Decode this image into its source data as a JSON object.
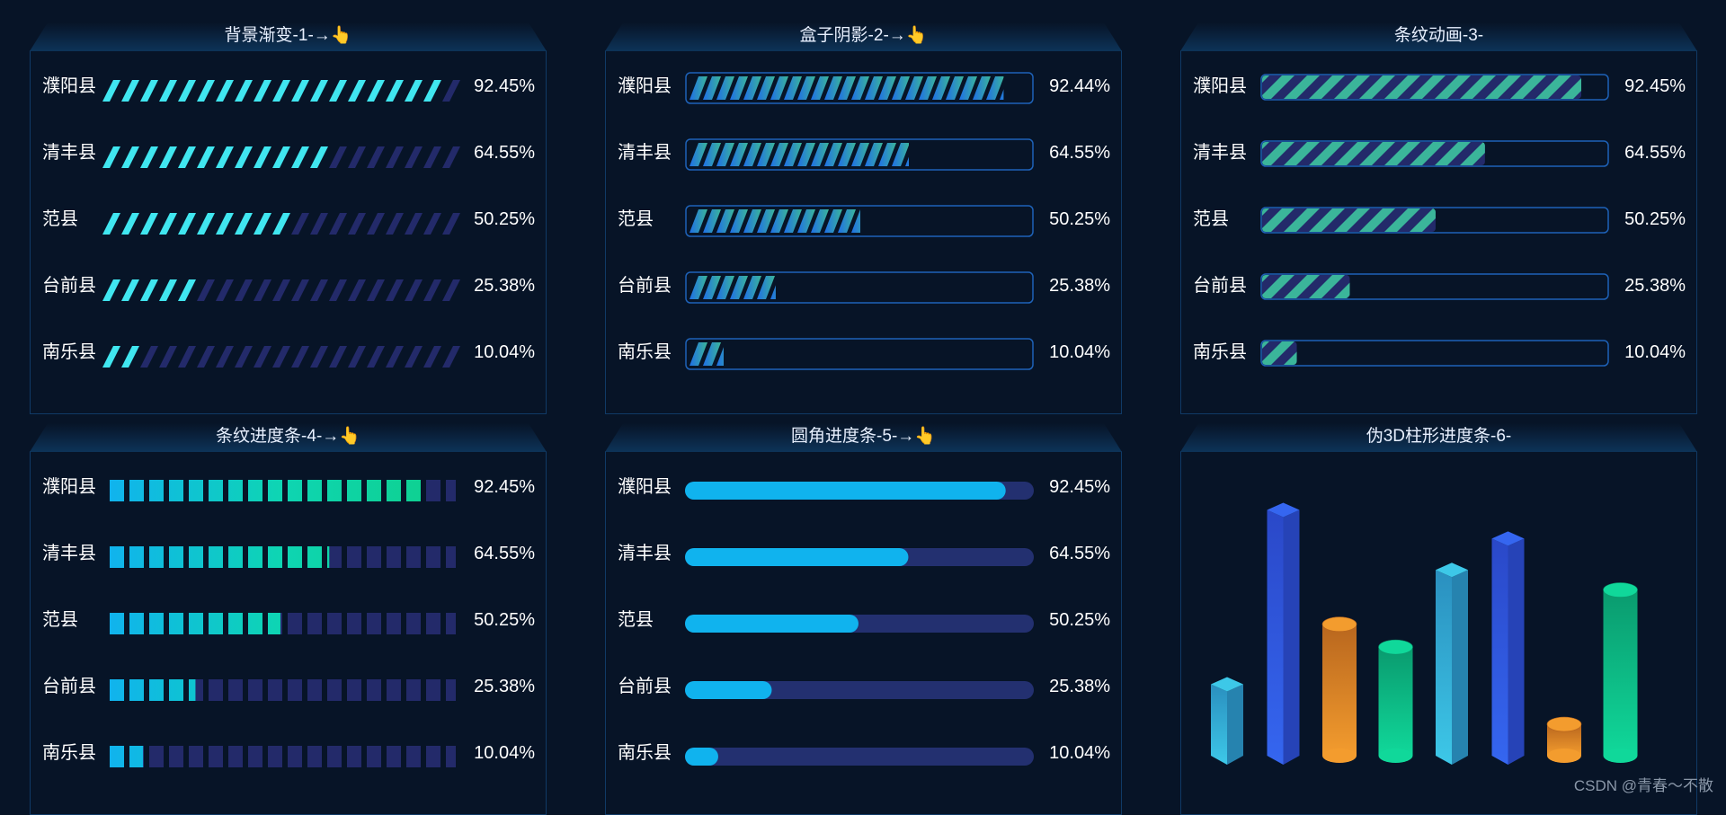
{
  "colors": {
    "cyan": "#40e6f0",
    "stripe_dim": "#232a6a",
    "blue": "#1f6fe6",
    "teal": "#3bb59a",
    "frame": "#1e62b8",
    "sky": "#10b3ee",
    "track": "#233070",
    "seg_a": "#10b3ee",
    "seg_b": "#0ed5b3",
    "seg_c": "#0fd08c"
  },
  "panels": [
    {
      "title": "背景渐变-1-→👆",
      "style": "gradient-stripes"
    },
    {
      "title": "盒子阴影-2-→👆",
      "style": "box-shadow"
    },
    {
      "title": "条纹动画-3-",
      "style": "stripe-animation"
    },
    {
      "title": "条纹进度条-4-→👆",
      "style": "segmented"
    },
    {
      "title": "圆角进度条-5-→👆",
      "style": "rounded"
    },
    {
      "title": "伪3D柱形进度条-6-",
      "style": "pseudo-3d"
    }
  ],
  "chart_data": [
    {
      "type": "bar",
      "categories": [
        "濮阳县",
        "清丰县",
        "范县",
        "台前县",
        "南乐县"
      ],
      "values": [
        92.45,
        64.55,
        50.25,
        25.38,
        10.04
      ],
      "labels": [
        "92.45%",
        "64.55%",
        "50.25%",
        "25.38%",
        "10.04%"
      ]
    },
    {
      "type": "bar",
      "categories": [
        "濮阳县",
        "清丰县",
        "范县",
        "台前县",
        "南乐县"
      ],
      "values": [
        92.44,
        64.55,
        50.25,
        25.38,
        10.04
      ],
      "labels": [
        "92.44%",
        "64.55%",
        "50.25%",
        "25.38%",
        "10.04%"
      ]
    },
    {
      "type": "bar",
      "categories": [
        "濮阳县",
        "清丰县",
        "范县",
        "台前县",
        "南乐县"
      ],
      "values": [
        92.45,
        64.55,
        50.25,
        25.38,
        10.04
      ],
      "labels": [
        "92.45%",
        "64.55%",
        "50.25%",
        "25.38%",
        "10.04%"
      ]
    },
    {
      "type": "bar",
      "categories": [
        "濮阳县",
        "清丰县",
        "范县",
        "台前县",
        "南乐县"
      ],
      "values": [
        92.45,
        64.55,
        50.25,
        25.38,
        10.04
      ],
      "labels": [
        "92.45%",
        "64.55%",
        "50.25%",
        "25.38%",
        "10.04%"
      ]
    },
    {
      "type": "bar",
      "categories": [
        "濮阳县",
        "清丰县",
        "范县",
        "台前县",
        "南乐县"
      ],
      "values": [
        92.45,
        64.55,
        50.25,
        25.38,
        10.04
      ],
      "labels": [
        "92.45%",
        "64.55%",
        "50.25%",
        "25.38%",
        "10.04%"
      ]
    },
    {
      "type": "bar",
      "values": [
        25,
        86,
        46,
        38,
        65,
        76,
        11,
        58
      ],
      "ylim": [
        0,
        100
      ],
      "bar_colors": [
        [
          "#3dc8e8",
          "#2a8fbf"
        ],
        [
          "#3566f0",
          "#2a48c8"
        ],
        [
          "#f39c2e",
          "#b8661e"
        ],
        [
          "#10d89a",
          "#0a9a6e"
        ],
        [
          "#3dc8e8",
          "#2a8fbf"
        ],
        [
          "#3566f0",
          "#2a48c8"
        ],
        [
          "#f39c2e",
          "#b8661e"
        ],
        [
          "#10d89a",
          "#0a9a6e"
        ]
      ],
      "shapes": [
        "prism",
        "prism",
        "cylinder",
        "cylinder",
        "prism",
        "prism",
        "cylinder",
        "cylinder"
      ]
    }
  ],
  "credit": "CSDN @青春～不散"
}
